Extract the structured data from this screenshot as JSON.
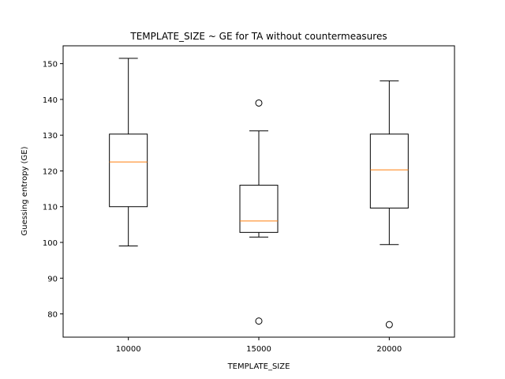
{
  "chart_data": {
    "type": "box",
    "title": "TEMPLATE_SIZE ~ GE for TA without countermeasures",
    "xlabel": "TEMPLATE_SIZE",
    "ylabel": "Guessing entropy (GE)",
    "categories": [
      "10000",
      "15000",
      "20000"
    ],
    "ylim": [
      73.5,
      155
    ],
    "yticks": [
      80,
      90,
      100,
      110,
      120,
      130,
      140,
      150
    ],
    "boxes": [
      {
        "category": "10000",
        "whisker_low": 99,
        "q1": 110,
        "median": 122.5,
        "q3": 130.3,
        "whisker_high": 151.5,
        "outliers": []
      },
      {
        "category": "15000",
        "whisker_low": 101.5,
        "q1": 102.8,
        "median": 106,
        "q3": 116,
        "whisker_high": 131.2,
        "outliers": [
          139,
          78
        ]
      },
      {
        "category": "20000",
        "whisker_low": 99.4,
        "q1": 109.6,
        "median": 120.3,
        "q3": 130.3,
        "whisker_high": 145.2,
        "outliers": [
          77
        ]
      }
    ],
    "grid": false,
    "colors": {
      "box": "#000000",
      "median": "#ff7f0e",
      "outlier": "#000000"
    }
  }
}
